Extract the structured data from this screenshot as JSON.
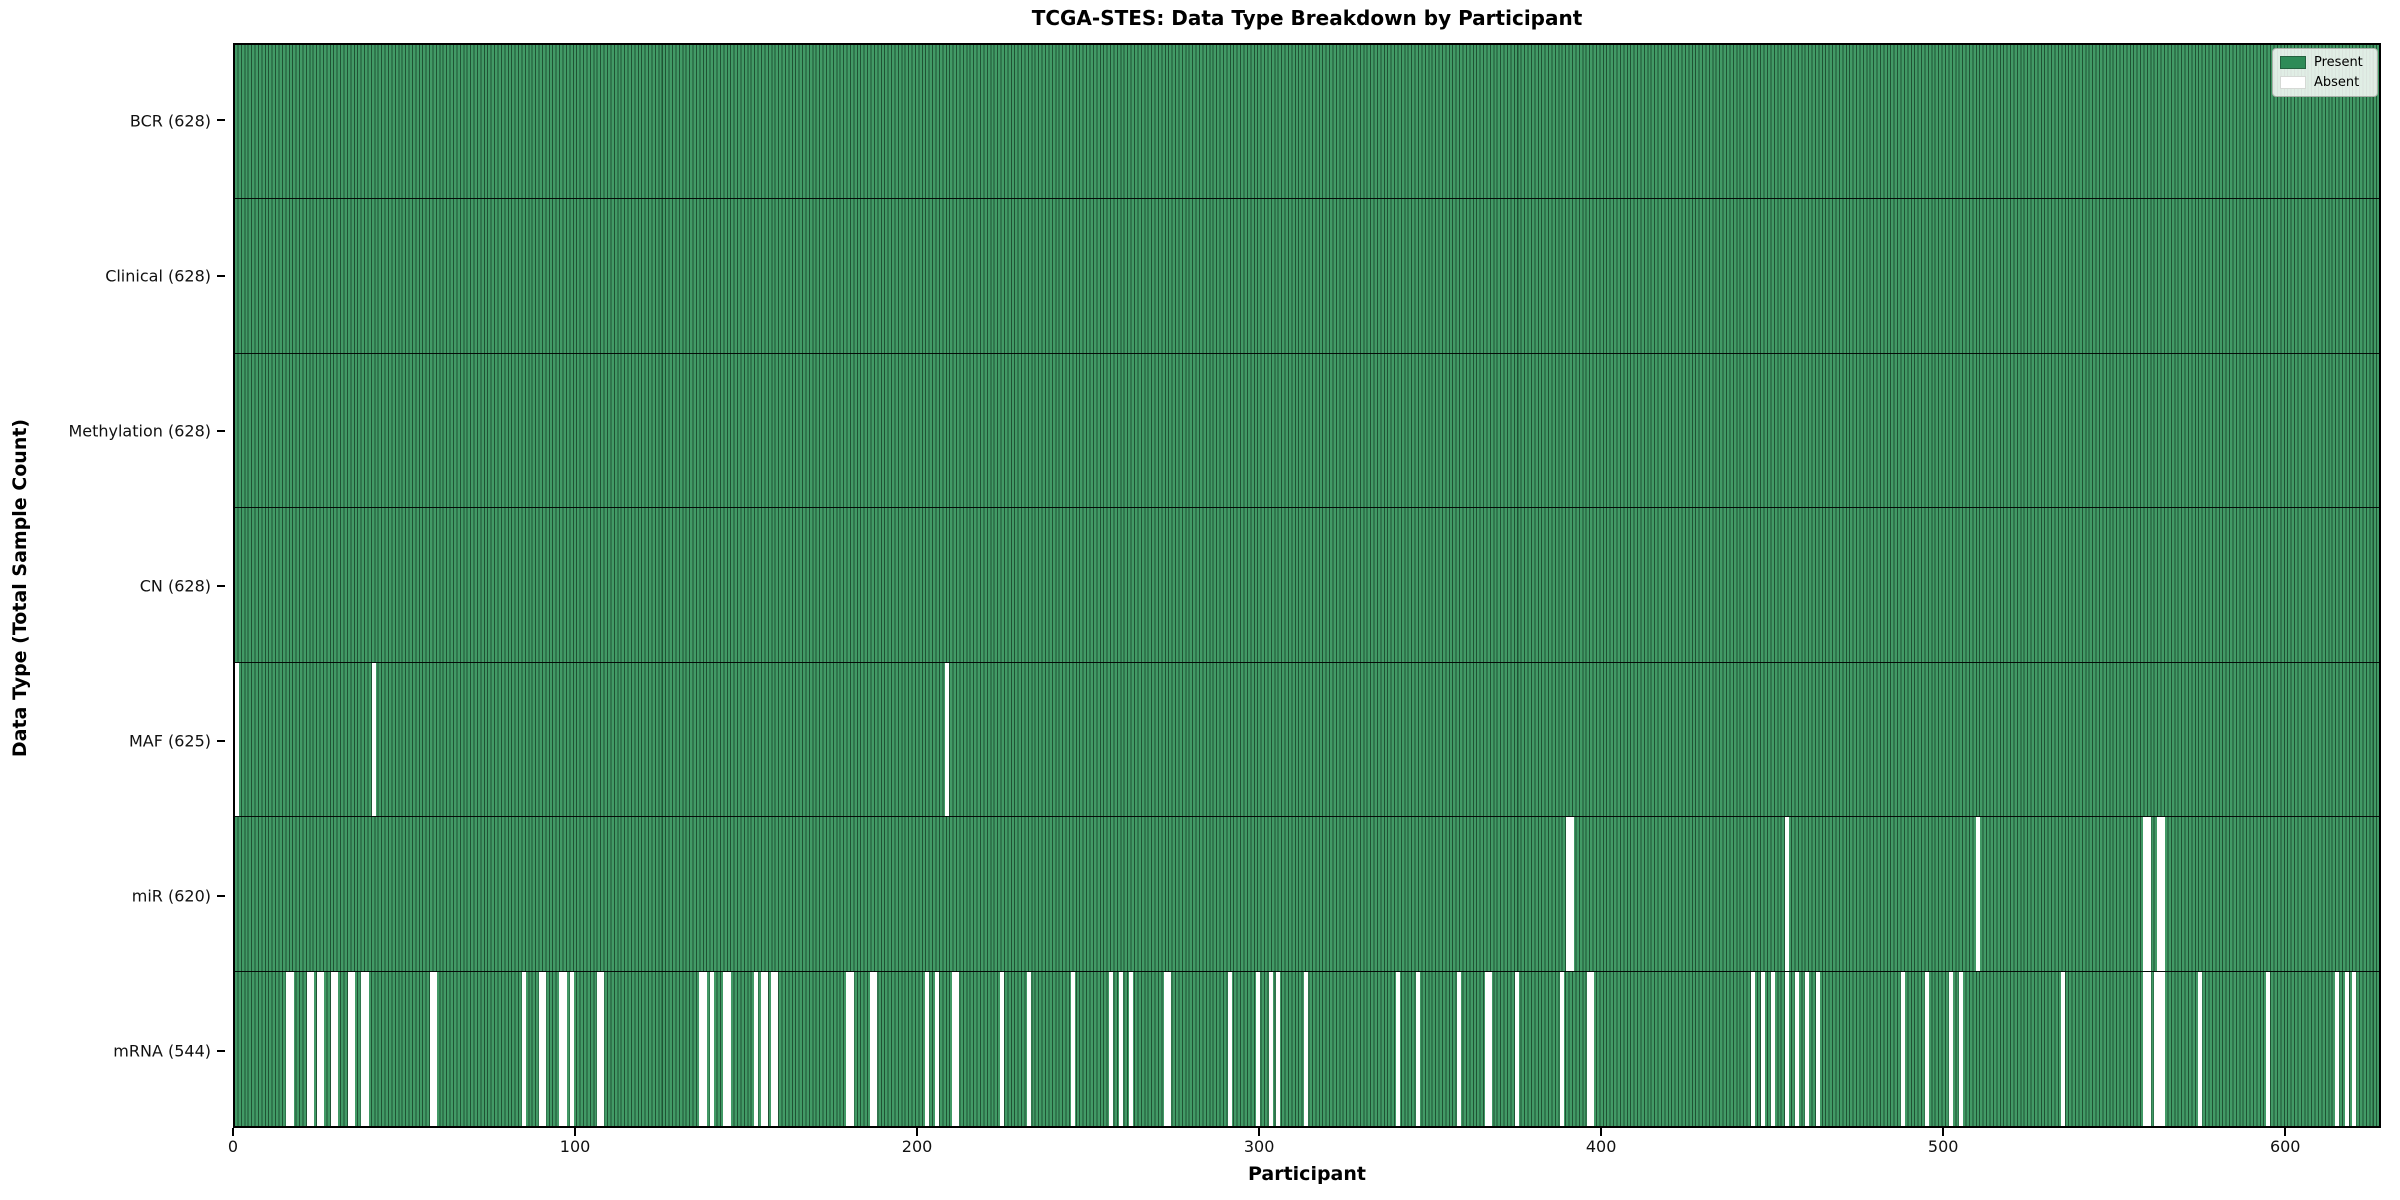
{
  "title": "TCGA-STES: Data Type Breakdown by Participant",
  "colors": {
    "present": "#2e8b57",
    "present_light": "#429a66",
    "bar_edge": "#1f5334",
    "absent": "#ffffff"
  },
  "legend": {
    "position": "upper right",
    "items": [
      {
        "label": "Present",
        "swatch": "present"
      },
      {
        "label": "Absent",
        "swatch": "absent"
      }
    ]
  },
  "chart_data": {
    "type": "heatmap",
    "title": "TCGA-STES: Data Type Breakdown by Participant",
    "xlabel": "Participant",
    "ylabel": "Data Type (Total Sample Count)",
    "x_axis": {
      "min": 0,
      "max": 628,
      "ticks": [
        0,
        100,
        200,
        300,
        400,
        500,
        600
      ]
    },
    "n_participants": 628,
    "grid": false,
    "rows": [
      {
        "name": "BCR",
        "label": "BCR (628)",
        "present_count": 628,
        "absent_participants": []
      },
      {
        "name": "Clinical",
        "label": "Clinical (628)",
        "present_count": 628,
        "absent_participants": []
      },
      {
        "name": "Methylation",
        "label": "Methylation (628)",
        "present_count": 628,
        "absent_participants": []
      },
      {
        "name": "CN",
        "label": "CN (628)",
        "present_count": 628,
        "absent_participants": []
      },
      {
        "name": "MAF",
        "label": "MAF (625)",
        "present_count": 625,
        "absent_participants": [
          0,
          40,
          208
        ]
      },
      {
        "name": "miR",
        "label": "miR (620)",
        "present_count": 620,
        "absent_participants": [
          390,
          391,
          454,
          510,
          559,
          560,
          563,
          564
        ]
      },
      {
        "name": "mRNA",
        "label": "mRNA (544)",
        "present_count": 544,
        "absent_participants": [
          15,
          16,
          21,
          22,
          24,
          25,
          28,
          29,
          33,
          34,
          37,
          38,
          57,
          58,
          84,
          89,
          90,
          95,
          96,
          98,
          106,
          107,
          136,
          137,
          139,
          143,
          144,
          152,
          154,
          155,
          157,
          158,
          179,
          180,
          186,
          187,
          202,
          205,
          210,
          211,
          224,
          232,
          245,
          256,
          259,
          262,
          272,
          273,
          291,
          299,
          303,
          305,
          313,
          340,
          346,
          358,
          366,
          367,
          375,
          388,
          396,
          397,
          444,
          447,
          450,
          454,
          457,
          460,
          463,
          488,
          495,
          502,
          505,
          535,
          559,
          560,
          562,
          563,
          564,
          575,
          595,
          615,
          618,
          620
        ]
      }
    ]
  }
}
